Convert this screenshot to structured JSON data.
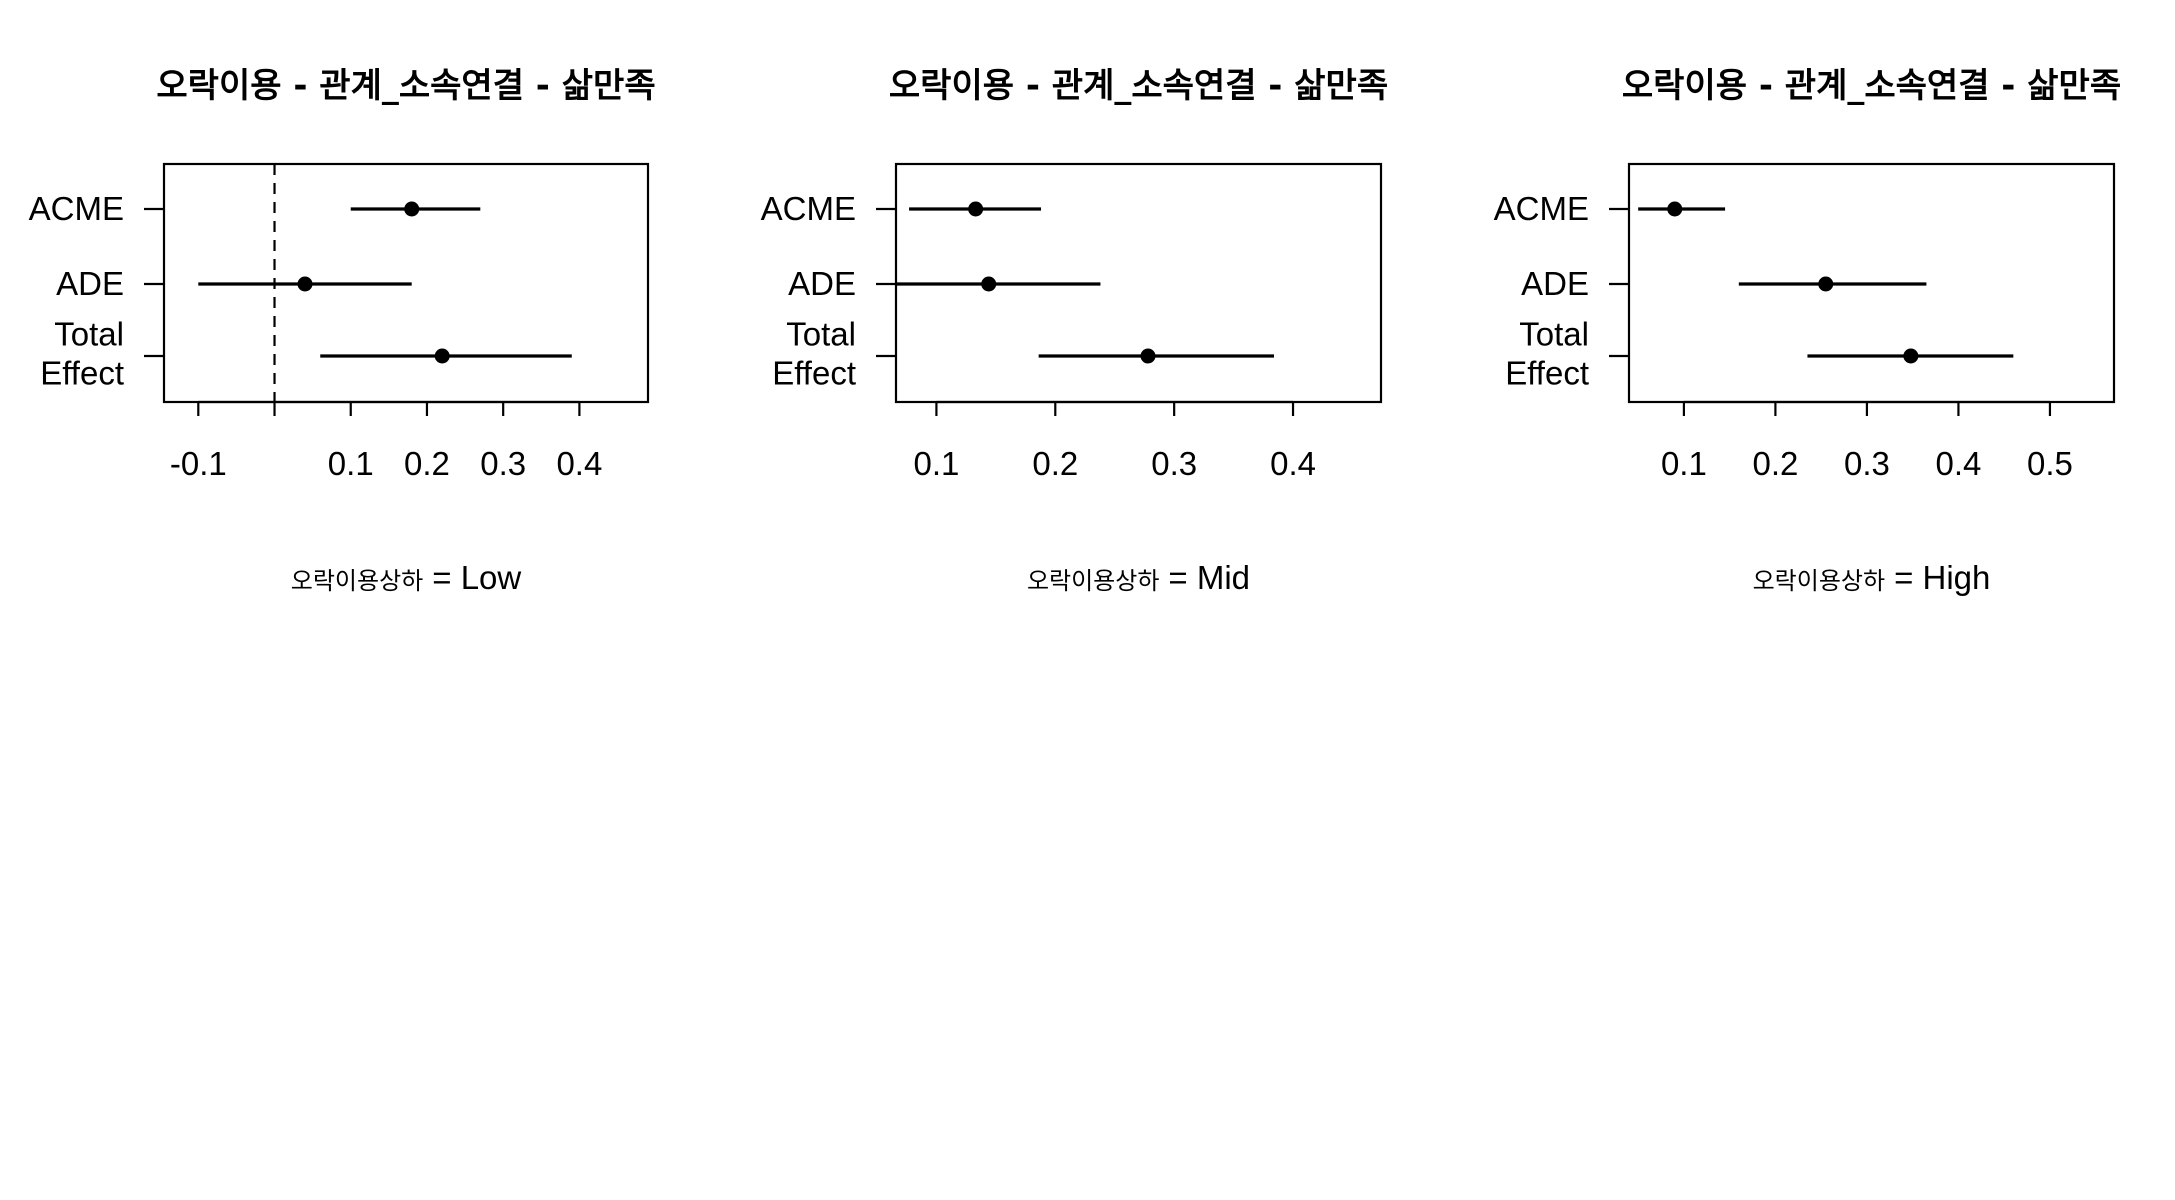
{
  "chart_data": [
    {
      "type": "forest",
      "title": "오락이용 - 관계_소속연결 - 삶만족",
      "subtitle": {
        "variable": "오락이용상하",
        "level": "= Low"
      },
      "row_labels": [
        [
          "ACME"
        ],
        [
          "ADE"
        ],
        [
          "Total",
          "Effect"
        ]
      ],
      "estimates": [
        {
          "estimate": 0.18,
          "lower": 0.1,
          "upper": 0.27
        },
        {
          "estimate": 0.04,
          "lower": -0.1,
          "upper": 0.18
        },
        {
          "estimate": 0.22,
          "lower": 0.06,
          "upper": 0.39
        }
      ],
      "xlim": [
        -0.145,
        0.49
      ],
      "ticks": [
        -0.1,
        0.0,
        0.1,
        0.2,
        0.3,
        0.4
      ],
      "tick_labels": [
        "-0.1",
        "",
        "0.1",
        "0.2",
        "0.3",
        "0.4"
      ],
      "zero_line": true
    },
    {
      "type": "forest",
      "title": "오락이용 - 관계_소속연결 - 삶만족",
      "subtitle": {
        "variable": "오락이용상하",
        "level": "= Mid"
      },
      "row_labels": [
        [
          "ACME"
        ],
        [
          "ADE"
        ],
        [
          "Total",
          "Effect"
        ]
      ],
      "estimates": [
        {
          "estimate": 0.133,
          "lower": 0.077,
          "upper": 0.188
        },
        {
          "estimate": 0.144,
          "lower": 0.066,
          "upper": 0.238
        },
        {
          "estimate": 0.278,
          "lower": 0.186,
          "upper": 0.384
        }
      ],
      "xlim": [
        0.066,
        0.474
      ],
      "ticks": [
        0.1,
        0.2,
        0.3,
        0.4
      ],
      "tick_labels": [
        "0.1",
        "0.2",
        "0.3",
        "0.4"
      ],
      "zero_line": false
    },
    {
      "type": "forest",
      "title": "오락이용 - 관계_소속연결 - 삶만족",
      "subtitle": {
        "variable": "오락이용상하",
        "level": "= High"
      },
      "row_labels": [
        [
          "ACME"
        ],
        [
          "ADE"
        ],
        [
          "Total",
          "Effect"
        ]
      ],
      "estimates": [
        {
          "estimate": 0.09,
          "lower": 0.05,
          "upper": 0.145
        },
        {
          "estimate": 0.255,
          "lower": 0.16,
          "upper": 0.365
        },
        {
          "estimate": 0.348,
          "lower": 0.235,
          "upper": 0.46
        }
      ],
      "xlim": [
        0.04,
        0.57
      ],
      "ticks": [
        0.1,
        0.2,
        0.3,
        0.4,
        0.5
      ],
      "tick_labels": [
        "0.1",
        "0.2",
        "0.3",
        "0.4",
        "0.5"
      ],
      "zero_line": false
    }
  ]
}
